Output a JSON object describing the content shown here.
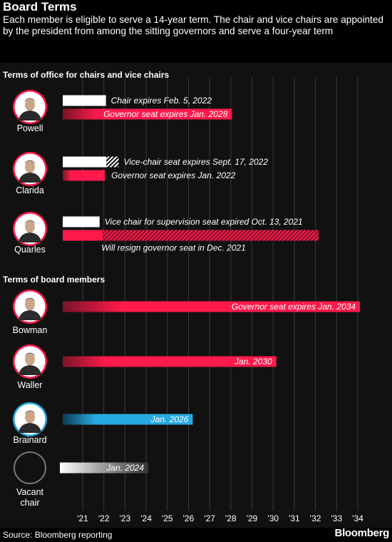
{
  "title": "Board Terms",
  "subtitle": "Each member is eligible to serve a 14-year term. The chair and vice chairs are appointed by the president from among the sitting governors and serve a four-year term",
  "source": "Source: Bloomberg reporting",
  "brand": "Bloomberg",
  "colors": {
    "governor": "#ff1a4b",
    "brainard": "#27a9e1",
    "chair": "#ffffff",
    "grid": "#3a3a3a"
  },
  "chart_data": {
    "type": "bar",
    "orientation": "horizontal-timeline",
    "xlim": [
      2021,
      2035
    ],
    "ticks": [
      "'21",
      "'22",
      "'23",
      "'24",
      "'25",
      "'26",
      "'27",
      "'28",
      "'29",
      "'30",
      "'31",
      "'32",
      "'33",
      "'34"
    ],
    "sections": [
      {
        "heading": "Terms of office for chairs and vice chairs",
        "members": [
          {
            "name": "Powell",
            "photo": "photo-icon",
            "bars": [
              {
                "label": "Chair expires Feb. 5, 2022",
                "start": 2021.0,
                "end": 2022.1,
                "color": "chair",
                "style": "solid"
              },
              {
                "label": "Governor seat expires Jan. 2028",
                "start": 2021.0,
                "end": 2028.05,
                "color": "governor",
                "style": "solid"
              }
            ]
          },
          {
            "name": "Clarida",
            "photo": "photo-icon",
            "bars": [
              {
                "label": "Vice-chair seat expires Sept. 17, 2022",
                "start": 2021.0,
                "end": 2022.7,
                "color": "chair",
                "style": "solid-then-hatched",
                "solid_end": 2022.12
              },
              {
                "label": "Governor seat expires Jan. 2022",
                "start": 2021.0,
                "end": 2022.05,
                "color": "governor",
                "style": "solid"
              }
            ]
          },
          {
            "name": "Quarles",
            "photo": "photo-icon",
            "bars": [
              {
                "label": "Vice chair for supervision seat expired Oct. 13, 2021",
                "start": 2021.0,
                "end": 2021.8,
                "color": "chair",
                "style": "solid"
              },
              {
                "label": "Will resign governor seat in Dec. 2021",
                "start": 2021.0,
                "end": 2032.15,
                "color": "governor",
                "style": "solid-then-hatched",
                "solid_end": 2021.95
              }
            ]
          }
        ]
      },
      {
        "heading": "Terms of board members",
        "members": [
          {
            "name": "Bowman",
            "photo": "photo-icon",
            "bars": [
              {
                "label": "Governor seat expires Jan. 2034",
                "start": 2021.0,
                "end": 2034.1,
                "color": "governor",
                "style": "solid"
              }
            ]
          },
          {
            "name": "Waller",
            "photo": "photo-icon",
            "bars": [
              {
                "label": "Jan. 2030",
                "start": 2021.0,
                "end": 2030.15,
                "color": "governor",
                "style": "solid"
              }
            ]
          },
          {
            "name": "Brainard",
            "photo": "photo-icon",
            "bars": [
              {
                "label": "Jan. 2026",
                "start": 2021.0,
                "end": 2026.2,
                "color": "brainard",
                "style": "solid"
              }
            ]
          },
          {
            "name": "Vacant chair",
            "photo": "empty-circle-icon",
            "bars": [
              {
                "label": "Jan. 2024",
                "start": 2020.8,
                "end": 2024.1,
                "color": "gradient",
                "style": "gradient"
              }
            ]
          }
        ]
      }
    ]
  }
}
